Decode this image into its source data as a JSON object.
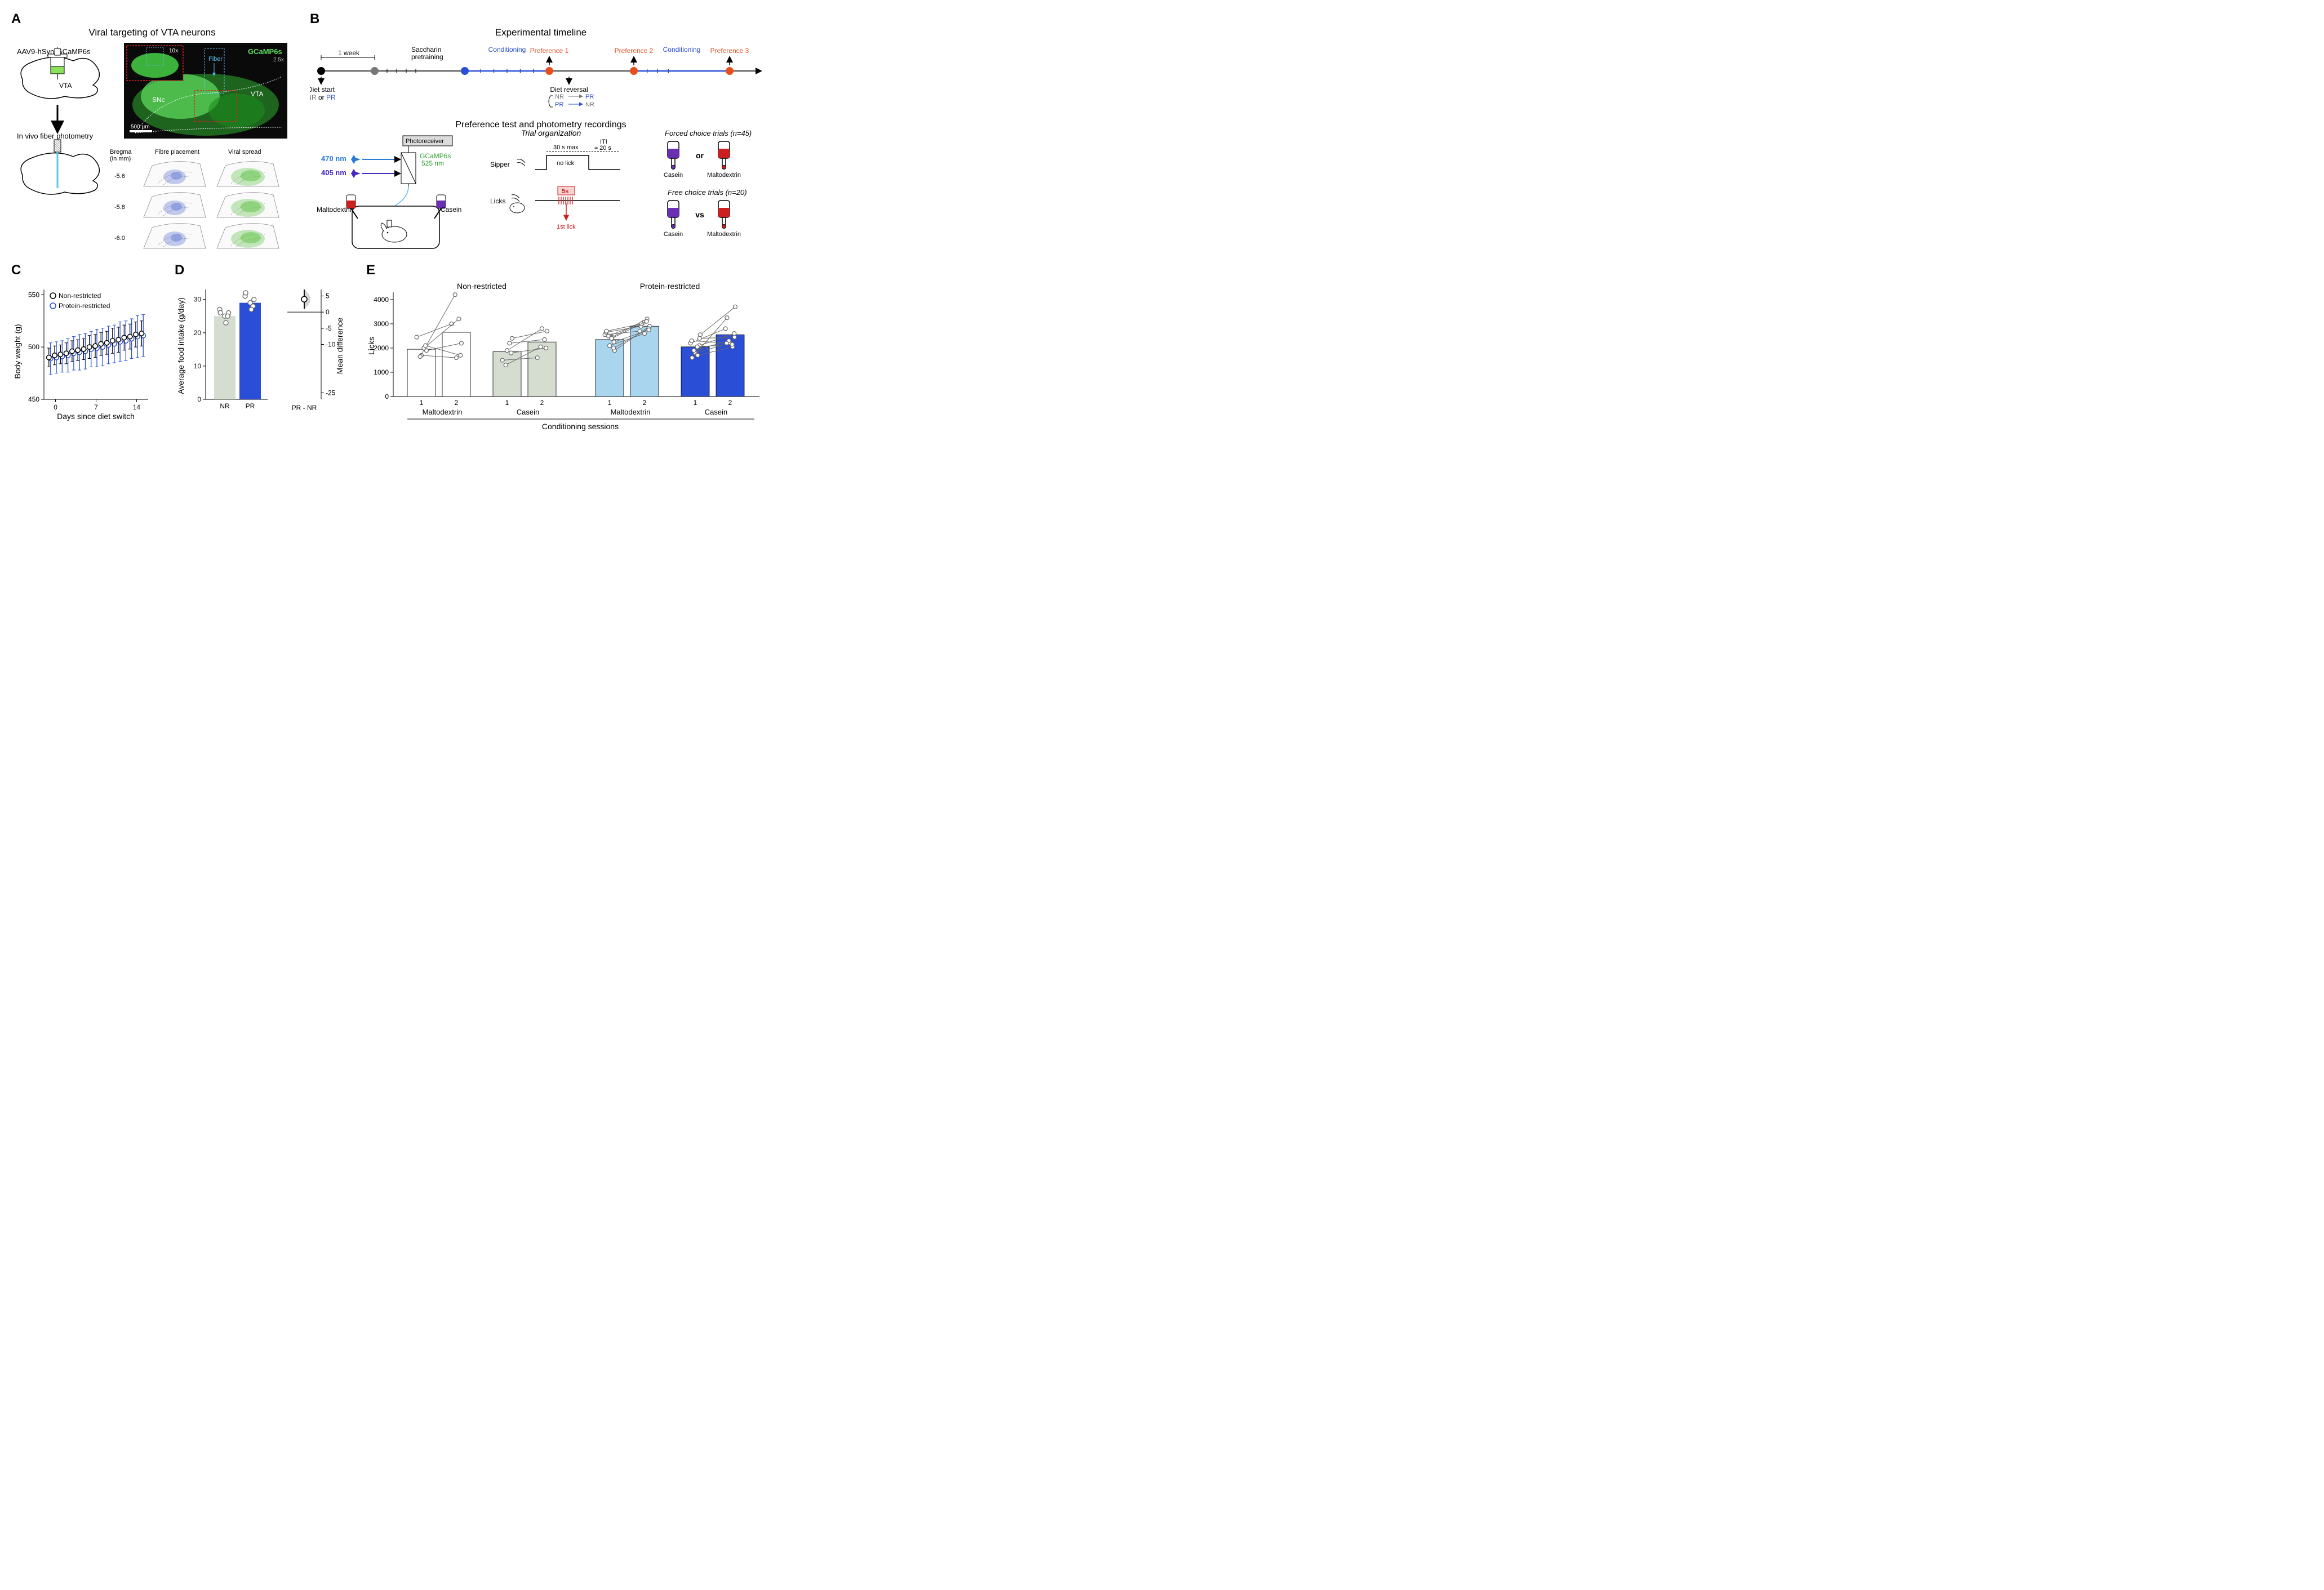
{
  "figure": {
    "A": {
      "title": "Viral targeting of VTA neurons",
      "virus_label": "AAV9-hSyn-GCaMP6s",
      "vta_label": "VTA",
      "photometry_label": "In vivo fiber photometry",
      "micrograph": {
        "gcamp_label": "GCaMP6s",
        "mag_inset": "10x",
        "mag_main": "2.5x",
        "fiber_label": "Fiber",
        "snc_label": "SNc",
        "vta_label": "VTA",
        "scale_bar": "500 μm"
      },
      "histology": {
        "bregma_label": "Bregma\n(in mm)",
        "fibre_col": "Fibre placement",
        "viral_col": "Viral spread",
        "levels": [
          "-5.6",
          "-5.8",
          "-6.0"
        ],
        "fiber_color": "#7a8ed9",
        "viral_color": "#6ec85a"
      }
    },
    "B": {
      "title": "Experimental timeline",
      "week_label": "1 week",
      "nodes": [
        {
          "label": "Diet start",
          "sub": "NR or PR",
          "color": "#000000"
        },
        {
          "label": "",
          "color": "#777777"
        },
        {
          "label": "Saccharin\npretraining",
          "color": "#000000"
        },
        {
          "label": "",
          "color": "#2a4ed6"
        },
        {
          "label": "Conditioning",
          "color": "#2a4ed6"
        },
        {
          "label": "Preference 1",
          "color": "#e84e1b"
        },
        {
          "label": "Diet reversal",
          "color": "#000000"
        },
        {
          "label": "Preference 2",
          "color": "#e84e1b"
        },
        {
          "label": "Conditioning",
          "color": "#2a4ed6"
        },
        {
          "label": "Preference 3",
          "color": "#e84e1b"
        }
      ],
      "reversal_map": [
        [
          "NR",
          "PR"
        ],
        [
          "PR",
          "NR"
        ]
      ],
      "pref_title": "Preference test and photometry recordings",
      "photoreceiver_label": "Photoreceiver",
      "wavelength_470": "470 nm",
      "wavelength_405": "405 nm",
      "gcamp_em": "GCaMP6s\n525 nm",
      "maltodextrin_label": "Maltodextrin",
      "casein_label": "Casein",
      "trial_org_title": "Trial organization",
      "sipper_label": "Sipper",
      "lick_label": "Licks",
      "trial_30s": "30 s max",
      "trial_nolick": "no lick",
      "trial_iti": "ITI\n≈ 20 s",
      "trial_5s": "5s",
      "trial_1stlick": "1st lick",
      "forced_title": "Forced choice trials (n=45)",
      "free_title": "Free choice trials (n=20)",
      "or_label": "or",
      "vs_label": "vs",
      "casein_color": "#6a2fb5",
      "malto_color": "#cc1f1f"
    },
    "C": {
      "ylabel": "Body weight (g)",
      "xlabel": "Days since diet switch",
      "legend": [
        "Non-restricted",
        "Protein-restricted"
      ],
      "legend_colors": [
        "#000000",
        "#2a4ed6"
      ],
      "xticks": [
        0,
        7,
        14
      ],
      "yticks": [
        450,
        500,
        550
      ],
      "ylim": [
        450,
        555
      ],
      "xlim": [
        -2,
        16
      ],
      "days": [
        -1,
        0,
        1,
        2,
        3,
        4,
        5,
        6,
        7,
        8,
        9,
        10,
        11,
        12,
        13,
        14,
        15
      ],
      "nr_mean": [
        490,
        492,
        493,
        494,
        496,
        497,
        498,
        500,
        501,
        503,
        504,
        506,
        507,
        509,
        510,
        512,
        513
      ],
      "nr_err": [
        9,
        9,
        9,
        10,
        10,
        10,
        10,
        11,
        11,
        11,
        11,
        12,
        12,
        12,
        12,
        12,
        12
      ],
      "pr_mean": [
        489,
        490,
        491,
        492,
        494,
        495,
        496,
        498,
        499,
        500,
        502,
        503,
        505,
        506,
        508,
        510,
        511
      ],
      "pr_err": [
        15,
        15,
        15,
        16,
        16,
        17,
        17,
        17,
        18,
        18,
        18,
        18,
        19,
        19,
        19,
        20,
        20
      ],
      "marker_fill": "#ffffff",
      "nr_stroke": "#000000",
      "pr_stroke": "#2a4ed6",
      "bg": "#ffffff"
    },
    "D": {
      "ylabel": "Average food intake (g/day)",
      "ylabel2": "Mean difference",
      "xticks": [
        "NR",
        "PR"
      ],
      "means": [
        25,
        29
      ],
      "bar_colors": [
        "#d5ddd1",
        "#2a4ed6"
      ],
      "yticks": [
        0,
        10,
        20,
        30
      ],
      "ylim": [
        0,
        33
      ],
      "nr_points": [
        25,
        26,
        27,
        25,
        23,
        26
      ],
      "pr_points": [
        29,
        30,
        31,
        28,
        27,
        32
      ],
      "diff_label": "PR - NR",
      "diff_yticks": [
        5,
        0,
        -5,
        -10,
        -25
      ],
      "diff_mean": 4,
      "diff_ci": [
        1,
        7
      ],
      "diff_ylim": [
        -27,
        7
      ],
      "point_stroke": "#666666",
      "point_fill": "#ffffff"
    },
    "E": {
      "ylabel": "Licks",
      "xlabel": "Conditioning sessions",
      "panels": [
        "Non-restricted",
        "Protein-restricted"
      ],
      "groups": [
        "Maltodextrin",
        "Casein"
      ],
      "sessions": [
        "1",
        "2"
      ],
      "yticks": [
        0,
        1000,
        2000,
        3000,
        4000
      ],
      "ylim": [
        0,
        4300
      ],
      "bars": {
        "NR": {
          "Maltodextrin": {
            "means": [
              1950,
              2650
            ],
            "fill": "#ffffff"
          },
          "Casein": {
            "means": [
              1850,
              2250
            ],
            "fill": "#d5ddd1"
          }
        },
        "PR": {
          "Maltodextrin": {
            "means": [
              2350,
              2900
            ],
            "fill": "#a9d5ee"
          },
          "Casein": {
            "means": [
              2050,
              2550
            ],
            "fill": "#2a4ed6"
          }
        }
      },
      "nr_malto_pts": [
        [
          1700,
          1600
        ],
        [
          1900,
          2200
        ],
        [
          1650,
          4200
        ],
        [
          2450,
          3000
        ],
        [
          2000,
          3200
        ],
        [
          2100,
          1700
        ]
      ],
      "nr_casein_pts": [
        [
          1900,
          2800
        ],
        [
          2400,
          2700
        ],
        [
          1300,
          2050
        ],
        [
          1500,
          1600
        ],
        [
          2200,
          2350
        ],
        [
          1800,
          2000
        ]
      ],
      "pr_malto_pts": [
        [
          2100,
          2600
        ],
        [
          1900,
          2900
        ],
        [
          2500,
          3050
        ],
        [
          2550,
          2700
        ],
        [
          2450,
          3200
        ],
        [
          2000,
          2800
        ],
        [
          2650,
          2900
        ],
        [
          2700,
          3000
        ],
        [
          2250,
          2750
        ],
        [
          2400,
          3100
        ]
      ],
      "pr_casein_pts": [
        [
          1800,
          2200
        ],
        [
          2550,
          3700
        ],
        [
          1900,
          2300
        ],
        [
          2200,
          2800
        ],
        [
          1700,
          2050
        ],
        [
          2100,
          2600
        ],
        [
          2300,
          2200
        ],
        [
          1600,
          3250
        ],
        [
          2400,
          2450
        ],
        [
          2050,
          2150
        ]
      ],
      "point_stroke": "#666666",
      "point_fill": "#ffffff"
    }
  },
  "style": {
    "font": "Arial",
    "label_fontsize": 14,
    "tick_fontsize": 12,
    "title_fontsize": 17,
    "panel_label_fontsize": 24,
    "axis_color": "#000000",
    "bg": "#ffffff"
  }
}
